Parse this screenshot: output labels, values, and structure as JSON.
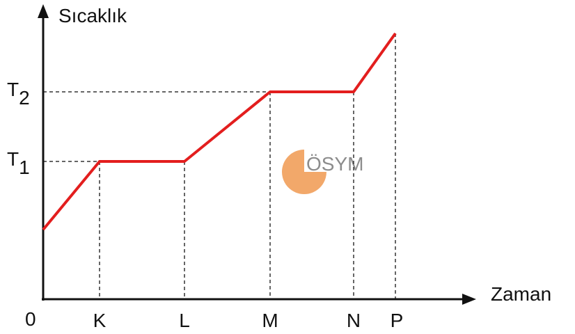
{
  "axes": {
    "y_label": "Sıcaklık",
    "x_label": "Zaman",
    "origin": "0"
  },
  "x_points": [
    "K",
    "L",
    "M",
    "N",
    "P"
  ],
  "y_points": [
    {
      "main": "T",
      "sub": "1"
    },
    {
      "main": "T",
      "sub": "2"
    }
  ],
  "watermark": "ÖSYM"
}
